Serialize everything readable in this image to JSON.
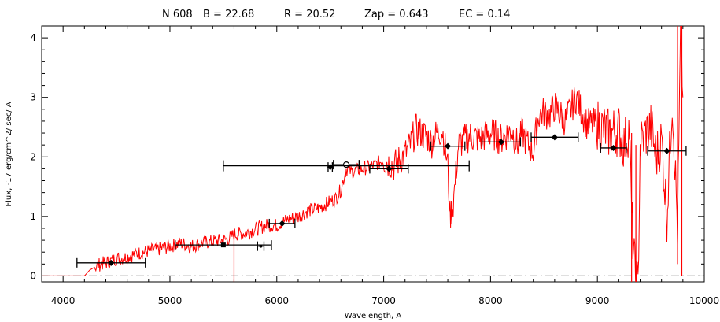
{
  "chart_data": {
    "type": "line",
    "title_fields": [
      {
        "text": "N 608"
      },
      {
        "text": "B = 22.68"
      },
      {
        "text": "R = 20.52"
      },
      {
        "text": "Zap = 0.643"
      },
      {
        "text": "EC =  0.14"
      }
    ],
    "xlabel": "Wavelength, A",
    "ylabel": "Flux, -17 erg/cm^2/ sec/ A",
    "xlim": [
      3800,
      10000
    ],
    "ylim": [
      -0.1,
      4.2
    ],
    "xticks": [
      4000,
      5000,
      6000,
      7000,
      8000,
      9000,
      10000
    ],
    "yticks": [
      0,
      1,
      2,
      3,
      4
    ],
    "grid": false,
    "colors": {
      "spectrum": "#ff0000",
      "points": "#000000",
      "zero_line": "#000000"
    },
    "spectrum": {
      "name": "",
      "x": [
        3800,
        4200,
        4250,
        4300,
        4350,
        4400,
        4450,
        4500,
        4550,
        4600,
        4650,
        4700,
        4800,
        4900,
        5000,
        5100,
        5200,
        5300,
        5400,
        5500,
        5550,
        5600,
        5700,
        5800,
        5900,
        6000,
        6050,
        6100,
        6200,
        6300,
        6400,
        6500,
        6550,
        6600,
        6650,
        6700,
        6800,
        6900,
        7000,
        7100,
        7200,
        7250,
        7300,
        7400,
        7450,
        7500,
        7550,
        7600,
        7620,
        7650,
        7700,
        7800,
        7900,
        8000,
        8100,
        8200,
        8250,
        8300,
        8350,
        8400,
        8450,
        8500,
        8550,
        8600,
        8700,
        8800,
        8900,
        9000,
        9100,
        9200,
        9250,
        9300,
        9320,
        9350,
        9380,
        9400,
        9450,
        9500,
        9550,
        9600,
        9650,
        9700,
        9750,
        9780,
        9800
      ],
      "y": [
        0.0,
        0.0,
        0.1,
        0.15,
        0.2,
        0.22,
        0.25,
        0.3,
        0.3,
        0.32,
        0.35,
        0.38,
        0.42,
        0.45,
        0.5,
        0.55,
        0.5,
        0.55,
        0.58,
        0.6,
        0.62,
        0.7,
        0.72,
        0.78,
        0.85,
        0.85,
        0.9,
        0.95,
        1.0,
        1.1,
        1.15,
        1.25,
        1.3,
        1.45,
        1.8,
        1.75,
        1.8,
        1.85,
        1.95,
        1.85,
        2.05,
        2.2,
        2.45,
        2.35,
        2.25,
        2.4,
        2.45,
        1.85,
        1.0,
        1.2,
        2.2,
        2.35,
        2.3,
        2.4,
        2.3,
        2.45,
        2.2,
        2.4,
        2.2,
        2.1,
        2.7,
        2.75,
        2.7,
        2.85,
        2.6,
        3.0,
        2.55,
        2.55,
        2.4,
        2.45,
        2.2,
        2.5,
        1.0,
        0.1,
        -0.2,
        2.2,
        2.4,
        2.5,
        2.0,
        2.3,
        1.0,
        3.0,
        0.8,
        4.2,
        3.0
      ]
    },
    "points": {
      "x": [
        4450,
        5500,
        5850,
        6050,
        6500,
        6650,
        7050,
        7600,
        8100,
        8600,
        9150,
        9650
      ],
      "y": [
        0.22,
        0.52,
        0.5,
        0.88,
        1.83,
        1.87,
        1.8,
        2.18,
        2.25,
        2.33,
        2.15,
        2.1
      ],
      "xerr": [
        320,
        450,
        30,
        120,
        20,
        120,
        180,
        160,
        180,
        220,
        120,
        180
      ],
      "xerr_wide": [
        {
          "x": 6600,
          "y": 1.85,
          "xmin": 5500,
          "xmax": 7800
        }
      ],
      "markers": [
        "diamond",
        "square",
        "dot",
        "diamond",
        "diamond",
        "circle",
        "diamond",
        "diamond",
        "diamond",
        "diamond",
        "diamond",
        "diamond"
      ]
    },
    "zero_line": {
      "y": 0.0,
      "style": "dash-dot"
    }
  }
}
